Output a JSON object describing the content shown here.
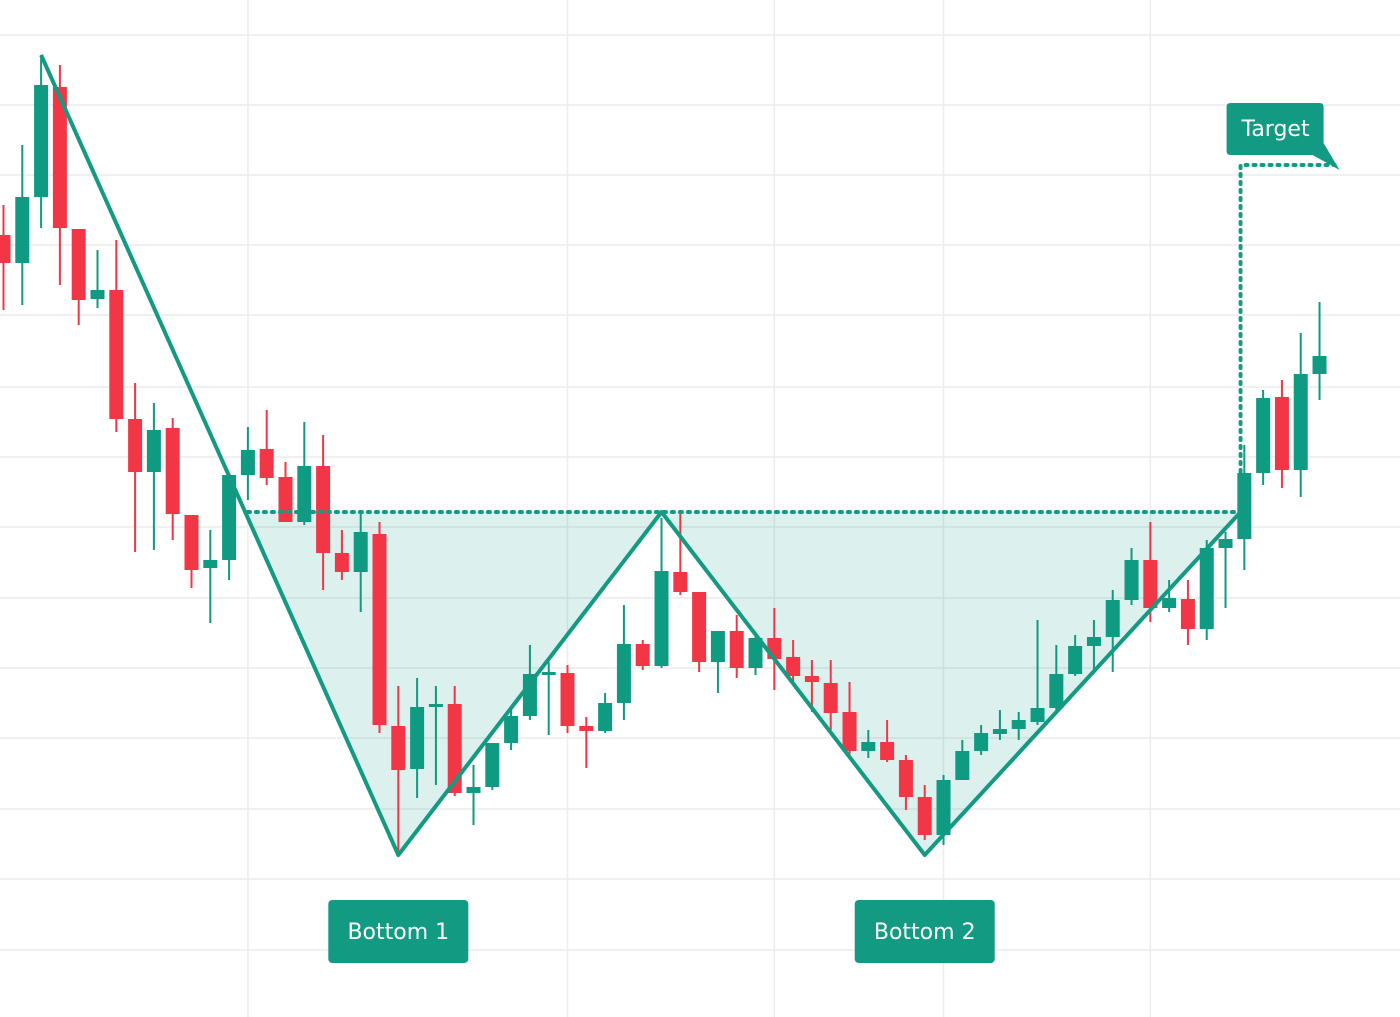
{
  "chart_data": {
    "type": "candlestick",
    "xlim": [
      -0.186,
      74.28
    ],
    "ylim": [
      0,
      1017
    ],
    "yticks": [
      982,
      912,
      842,
      772,
      702,
      630,
      560,
      490,
      419,
      349,
      279,
      208,
      138,
      67
    ],
    "xgrid": [
      13,
      30,
      41,
      50,
      61
    ],
    "grid": true,
    "up_color": "#0e9b82",
    "down_color": "#f23645",
    "pattern_color": "#139a83",
    "open": [
      782,
      754,
      820,
      930,
      788,
      718,
      727,
      598,
      545,
      589,
      502,
      449,
      457,
      542,
      568,
      540,
      495,
      551,
      464,
      445,
      483,
      291,
      248,
      310,
      313,
      224,
      230,
      274,
      301,
      342,
      344,
      291,
      286,
      314,
      373,
      351,
      445,
      425,
      355,
      386,
      349,
      379,
      360,
      341,
      334,
      305,
      266,
      275,
      257,
      220,
      182,
      237,
      266,
      283,
      288,
      295,
      309,
      343,
      371,
      380,
      417,
      457,
      409,
      418,
      388,
      469,
      478,
      544,
      620,
      547,
      643
    ],
    "high": [
      812,
      872,
      962,
      952,
      788,
      767,
      777,
      634,
      614,
      599,
      502,
      487,
      542,
      590,
      607,
      555,
      595,
      582,
      487,
      504,
      495,
      331,
      339,
      331,
      331,
      252,
      274,
      307,
      372,
      355,
      352,
      300,
      324,
      412,
      377,
      499,
      505,
      425,
      386,
      402,
      381,
      409,
      377,
      357,
      357,
      335,
      287,
      297,
      262,
      232,
      242,
      277,
      292,
      307,
      305,
      397,
      372,
      382,
      397,
      427,
      469,
      495,
      437,
      437,
      477,
      485,
      572,
      627,
      637,
      684,
      715
    ],
    "low": [
      707,
      712,
      789,
      732,
      692,
      709,
      585,
      465,
      467,
      477,
      429,
      394,
      437,
      517,
      532,
      495,
      492,
      427,
      437,
      405,
      284,
      162,
      219,
      232,
      221,
      192,
      227,
      267,
      297,
      282,
      284,
      249,
      284,
      297,
      347,
      349,
      422,
      345,
      324,
      339,
      342,
      327,
      335,
      305,
      287,
      262,
      259,
      255,
      207,
      177,
      172,
      237,
      262,
      277,
      277,
      292,
      307,
      341,
      347,
      345,
      412,
      395,
      405,
      372,
      377,
      409,
      447,
      532,
      529,
      520,
      617
    ],
    "close": [
      754,
      820,
      932,
      789,
      717,
      727,
      598,
      545,
      587,
      503,
      447,
      457,
      542,
      567,
      539,
      495,
      551,
      464,
      445,
      485,
      292,
      247,
      310,
      313,
      224,
      230,
      274,
      301,
      343,
      345,
      291,
      286,
      314,
      373,
      351,
      446,
      425,
      355,
      386,
      349,
      379,
      358,
      341,
      335,
      304,
      266,
      275,
      257,
      220,
      182,
      237,
      266,
      284,
      288,
      297,
      309,
      343,
      371,
      380,
      417,
      457,
      409,
      419,
      388,
      469,
      478,
      544,
      619,
      547,
      643,
      661
    ],
    "pattern": {
      "x": [
        2,
        21,
        35,
        49,
        65.8
      ],
      "y": [
        962,
        162,
        505,
        162,
        505
      ]
    },
    "neckline": {
      "x": [
        13,
        65.8
      ],
      "y": 505
    },
    "target": {
      "label": "Target",
      "x": [
        65.8,
        70.8
      ],
      "y": 852
    },
    "annotations": [
      "Bottom 1",
      "Bottom 2"
    ]
  }
}
